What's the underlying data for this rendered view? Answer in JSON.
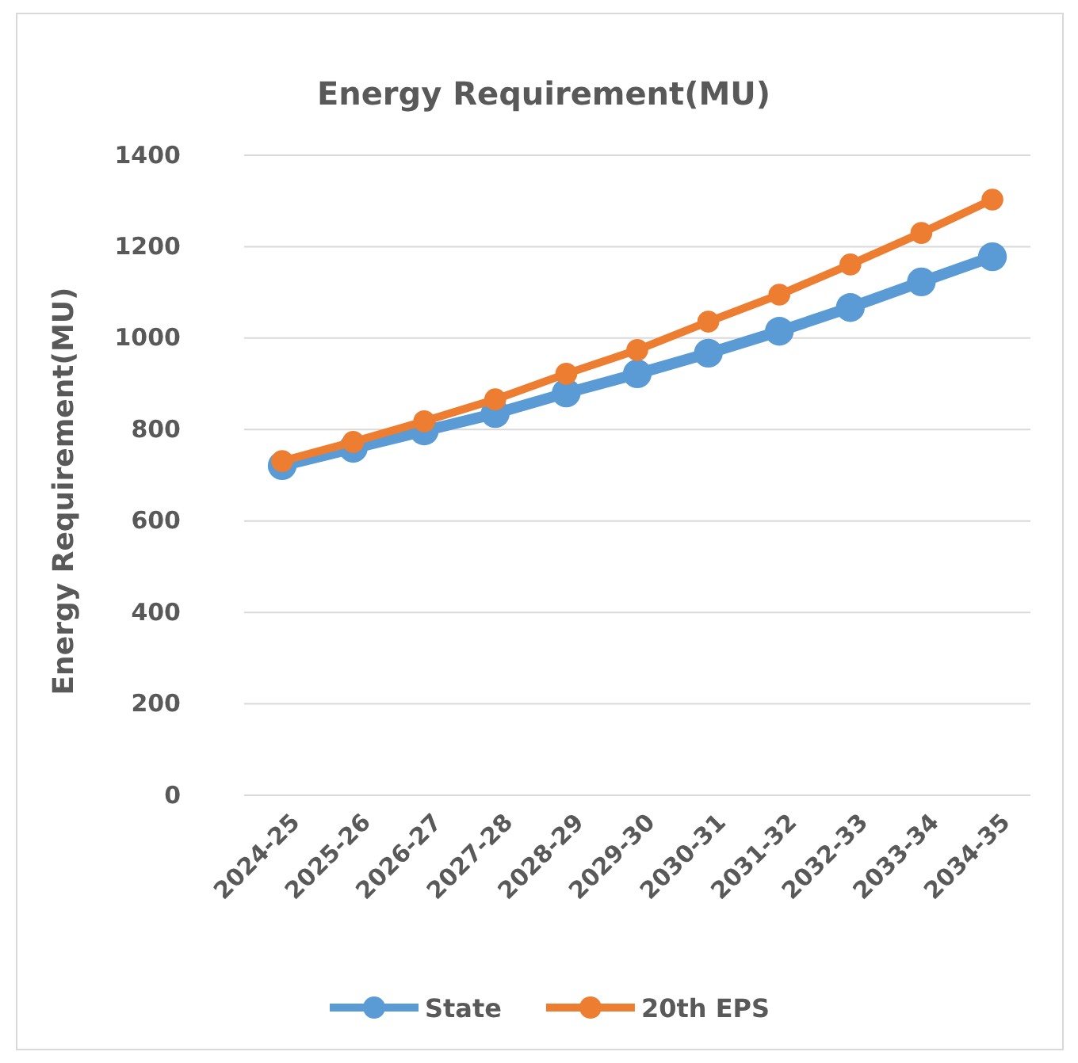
{
  "chart_data": {
    "type": "line",
    "title": "Energy Requirement(MU)",
    "ylabel": "Energy Requirement(MU)",
    "categories": [
      "2024-25",
      "2025-26",
      "2026-27",
      "2027-28",
      "2028-29",
      "2029-30",
      "2030-31",
      "2031-32",
      "2032-33",
      "2033-34",
      "2034-35"
    ],
    "series": [
      {
        "name": "State",
        "color": "#5b9bd5",
        "values": [
          721,
          759,
          797,
          835,
          880,
          922,
          967,
          1015,
          1067,
          1123,
          1178
        ]
      },
      {
        "name": "20th EPS",
        "color": "#ed7d31",
        "values": [
          731,
          773,
          818,
          866,
          922,
          974,
          1036,
          1095,
          1161,
          1230,
          1303
        ]
      }
    ],
    "ylim": [
      0,
      1400
    ],
    "yticks": [
      0,
      200,
      400,
      600,
      800,
      1000,
      1200,
      1400
    ],
    "grid": "y",
    "legend": "bottom",
    "marker": "circle",
    "line_style": "solid"
  }
}
